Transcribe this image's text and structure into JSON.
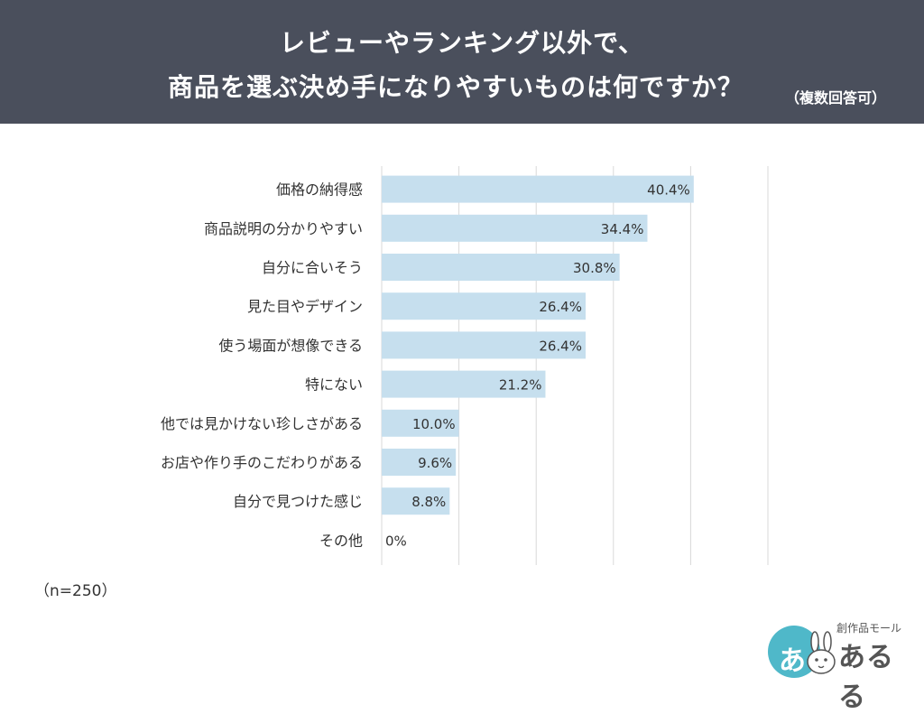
{
  "header": {
    "title_line1": "レビューやランキング以外で、",
    "title_line2": "商品を選ぶ決め手になりやすいものは何ですか？",
    "title_note": "（複数回答可）"
  },
  "chart_data": {
    "type": "bar",
    "orientation": "horizontal",
    "categories": [
      "価格の納得感",
      "商品説明の分かりやすい",
      "自分に合いそう",
      "見た目やデザイン",
      "使う場面が想像できる",
      "特にない",
      "他では見かけない珍しさがある",
      "お店や作り手のこだわりがある",
      "自分で見つけた感じ",
      "その他"
    ],
    "values": [
      40.4,
      34.4,
      30.8,
      26.4,
      26.4,
      21.2,
      10.0,
      9.6,
      8.8,
      0
    ],
    "value_labels": [
      "40.4%",
      "34.4%",
      "30.8%",
      "26.4%",
      "26.4%",
      "21.2%",
      "10.0%",
      "9.6%",
      "8.8%",
      "0%"
    ],
    "xlim": [
      0,
      50
    ],
    "x_ticks": [
      "0",
      "10",
      "20",
      "30",
      "40",
      "50"
    ],
    "x_unit": "(%)",
    "grid": true,
    "bar_color": "#c6dfee"
  },
  "sample_note": "（n=250）",
  "logo": {
    "small_text": "創作品モール",
    "main_text": "あるる",
    "icon_glyph": "あ",
    "circle_color": "#4fb8c9"
  }
}
